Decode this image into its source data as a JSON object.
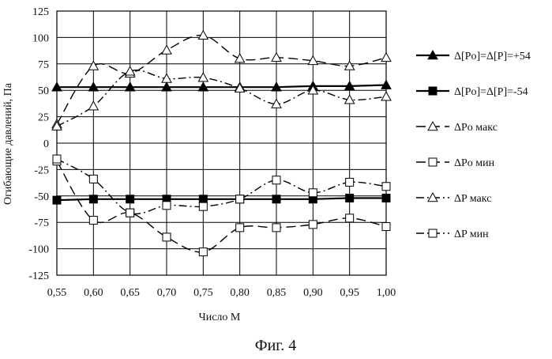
{
  "caption": "Фиг. 4",
  "chart_data": {
    "type": "line",
    "xlabel": "Число М",
    "ylabel": "Огибающие давлений, Па",
    "x": [
      0.55,
      0.6,
      0.65,
      0.7,
      0.75,
      0.8,
      0.85,
      0.9,
      0.95,
      1.0
    ],
    "x_tick_labels": [
      "0,55",
      "0,60",
      "0,65",
      "0,70",
      "0,75",
      "0,80",
      "0,85",
      "0,90",
      "0,95",
      "1,00"
    ],
    "xlim": [
      0.55,
      1.0
    ],
    "ylim": [
      -125,
      125
    ],
    "y_ticks": [
      -125,
      -100,
      -75,
      -50,
      -25,
      0,
      25,
      50,
      75,
      100,
      125
    ],
    "y_tick_labels": [
      "-125",
      "-100",
      "-75",
      "-50",
      "-25",
      "0",
      "25",
      "50",
      "75",
      "100",
      "125"
    ],
    "grid": true,
    "legend_position": "right",
    "series": [
      {
        "name": "Δ[Po]=Δ[P]=+54",
        "marker": "filled-triangle",
        "line_style": "solid",
        "color": "#000000",
        "values": [
          53,
          53,
          53,
          53,
          53,
          53,
          53,
          54,
          54,
          55
        ]
      },
      {
        "name": "Δ[Po]=Δ[P]=-54",
        "marker": "filled-square",
        "line_style": "solid",
        "color": "#000000",
        "values": [
          -54,
          -53,
          -53,
          -53,
          -53,
          -53,
          -53,
          -53,
          -52,
          -52
        ]
      },
      {
        "name": "ΔPo макс",
        "marker": "open-triangle",
        "line_style": "dashed",
        "color": "#000000",
        "values": [
          18,
          73,
          66,
          88,
          102,
          80,
          81,
          78,
          73,
          81
        ]
      },
      {
        "name": "ΔPo мин",
        "marker": "open-square",
        "line_style": "dashed",
        "color": "#000000",
        "values": [
          -17,
          -73,
          -66,
          -89,
          -103,
          -80,
          -80,
          -77,
          -71,
          -79
        ]
      },
      {
        "name": "ΔP макс",
        "marker": "open-triangle",
        "line_style": "dash-dot",
        "color": "#000000",
        "values": [
          16,
          35,
          68,
          61,
          62,
          52,
          37,
          50,
          41,
          44
        ]
      },
      {
        "name": "ΔP мин",
        "marker": "open-square",
        "line_style": "dash-dot",
        "color": "#000000",
        "values": [
          -15,
          -34,
          -66,
          -59,
          -60,
          -53,
          -35,
          -47,
          -37,
          -41
        ]
      }
    ]
  }
}
